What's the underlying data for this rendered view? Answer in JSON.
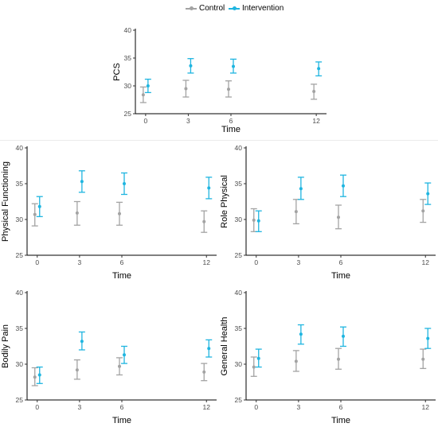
{
  "legend": {
    "items": [
      {
        "label": "Control",
        "color": "#a3a3a3"
      },
      {
        "label": "Intervention",
        "color": "#1fb5e0"
      }
    ]
  },
  "chart_data": [
    {
      "type": "scatter",
      "panel": "PCS",
      "x": [
        0,
        3,
        6,
        12
      ],
      "xticks": [
        "0",
        "3",
        "6",
        "12"
      ],
      "xlabel": "Time",
      "ylabel": "PCS",
      "ylim": [
        25,
        40
      ],
      "yticks": [
        25,
        30,
        35,
        40
      ],
      "series": [
        {
          "name": "Control",
          "values": [
            28.4,
            29.5,
            29.4,
            29.0
          ],
          "lower": [
            27.0,
            28.0,
            28.0,
            27.6
          ],
          "upper": [
            29.8,
            31.0,
            30.9,
            30.3
          ]
        },
        {
          "name": "Intervention",
          "values": [
            30.0,
            33.6,
            33.5,
            33.1
          ],
          "lower": [
            28.8,
            32.3,
            32.3,
            31.8
          ],
          "upper": [
            31.2,
            34.9,
            34.8,
            34.3
          ]
        }
      ]
    },
    {
      "type": "scatter",
      "panel": "Physical Functioning",
      "x": [
        0,
        3,
        6,
        12
      ],
      "xticks": [
        "0",
        "3",
        "6",
        "12"
      ],
      "xlabel": "Time",
      "ylabel": "Physical Functioning",
      "ylim": [
        25,
        40
      ],
      "yticks": [
        25,
        30,
        35,
        40
      ],
      "series": [
        {
          "name": "Control",
          "values": [
            30.7,
            30.9,
            30.8,
            29.7
          ],
          "lower": [
            29.1,
            29.2,
            29.2,
            28.2
          ],
          "upper": [
            32.2,
            32.5,
            32.4,
            31.2
          ]
        },
        {
          "name": "Intervention",
          "values": [
            31.8,
            35.3,
            35.0,
            34.4
          ],
          "lower": [
            30.4,
            33.8,
            33.5,
            32.9
          ],
          "upper": [
            33.2,
            36.8,
            36.5,
            35.9
          ]
        }
      ]
    },
    {
      "type": "scatter",
      "panel": "Role Physical",
      "x": [
        0,
        3,
        6,
        12
      ],
      "xticks": [
        "0",
        "3",
        "6",
        "12"
      ],
      "xlabel": "Time",
      "ylabel": "Role Physical",
      "ylim": [
        25,
        40
      ],
      "yticks": [
        25,
        30,
        35,
        40
      ],
      "series": [
        {
          "name": "Control",
          "values": [
            29.9,
            31.1,
            30.3,
            31.2
          ],
          "lower": [
            28.3,
            29.4,
            28.7,
            29.6
          ],
          "upper": [
            31.5,
            32.8,
            32.0,
            32.8
          ]
        },
        {
          "name": "Intervention",
          "values": [
            29.8,
            34.3,
            34.7,
            33.6
          ],
          "lower": [
            28.3,
            32.8,
            33.2,
            32.1
          ],
          "upper": [
            31.2,
            35.9,
            36.2,
            35.1
          ]
        }
      ]
    },
    {
      "type": "scatter",
      "panel": "Bodily Pain",
      "x": [
        0,
        3,
        6,
        12
      ],
      "xticks": [
        "0",
        "3",
        "6",
        "12"
      ],
      "xlabel": "Time",
      "ylabel": "Bodily Pain",
      "ylim": [
        25,
        40
      ],
      "yticks": [
        25,
        30,
        35,
        40
      ],
      "series": [
        {
          "name": "Control",
          "values": [
            28.2,
            29.2,
            29.7,
            28.9
          ],
          "lower": [
            27.0,
            27.9,
            28.5,
            27.7
          ],
          "upper": [
            29.5,
            30.6,
            30.9,
            30.1
          ]
        },
        {
          "name": "Intervention",
          "values": [
            28.5,
            33.2,
            31.3,
            32.2
          ],
          "lower": [
            27.3,
            32.0,
            30.1,
            31.0
          ],
          "upper": [
            29.6,
            34.5,
            32.5,
            33.4
          ]
        }
      ]
    },
    {
      "type": "scatter",
      "panel": "General Health",
      "x": [
        0,
        3,
        6,
        12
      ],
      "xticks": [
        "0",
        "3",
        "6",
        "12"
      ],
      "xlabel": "Time",
      "ylabel": "General Health",
      "ylim": [
        25,
        40
      ],
      "yticks": [
        25,
        30,
        35,
        40
      ],
      "series": [
        {
          "name": "Control",
          "values": [
            29.6,
            30.4,
            30.7,
            30.7
          ],
          "lower": [
            28.3,
            29.0,
            29.3,
            29.4
          ],
          "upper": [
            31.0,
            31.9,
            32.2,
            32.1
          ]
        },
        {
          "name": "Intervention",
          "values": [
            30.8,
            34.2,
            33.9,
            33.6
          ],
          "lower": [
            29.6,
            32.8,
            32.5,
            32.2
          ],
          "upper": [
            32.1,
            35.5,
            35.2,
            35.0
          ]
        }
      ]
    }
  ]
}
